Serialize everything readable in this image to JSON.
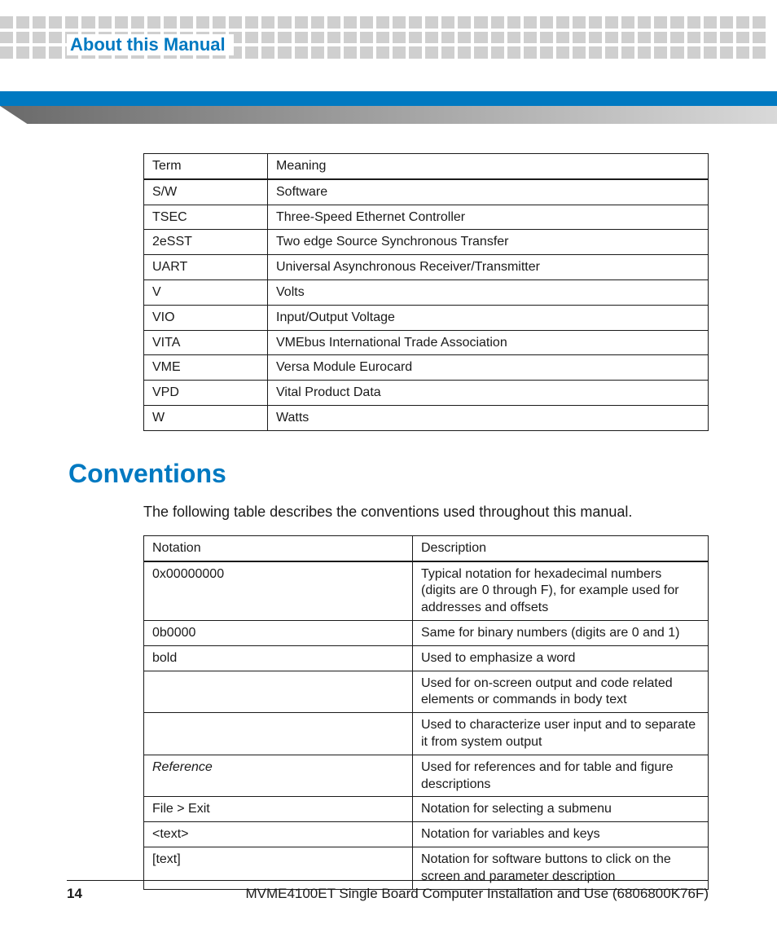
{
  "colors": {
    "accent": "#0079c1",
    "dot": "#cfcfcf",
    "wedge_start": "#6a6a6a",
    "wedge_end": "#d9d9d9",
    "text": "#1a1a1a",
    "border": "#1a1a1a"
  },
  "header": {
    "section_title": "About this Manual"
  },
  "term_table": {
    "columns": [
      "Term",
      "Meaning"
    ],
    "rows": [
      [
        "S/W",
        "Software"
      ],
      [
        "TSEC",
        "Three-Speed Ethernet Controller"
      ],
      [
        "2eSST",
        "Two edge Source Synchronous Transfer"
      ],
      [
        "UART",
        "Universal Asynchronous Receiver/Transmitter"
      ],
      [
        "V",
        "Volts"
      ],
      [
        "VIO",
        "Input/Output Voltage"
      ],
      [
        "VITA",
        "VMEbus International Trade Association"
      ],
      [
        "VME",
        "Versa Module Eurocard"
      ],
      [
        "VPD",
        "Vital Product Data"
      ],
      [
        "W",
        "Watts"
      ]
    ]
  },
  "conventions": {
    "heading": "Conventions",
    "intro": "The following table describes the conventions used throughout this manual.",
    "columns": [
      "Notation",
      "Description"
    ],
    "rows": [
      {
        "notation": "0x00000000",
        "style": "",
        "desc": "Typical notation for hexadecimal numbers (digits are 0 through F), for example used for addresses and offsets"
      },
      {
        "notation": "0b0000",
        "style": "",
        "desc": "Same for binary numbers (digits are 0 and 1)"
      },
      {
        "notation": "bold",
        "style": "",
        "desc": "Used to emphasize a word"
      },
      {
        "notation": "",
        "style": "",
        "desc": "Used for on-screen output and code related elements or commands in body text"
      },
      {
        "notation": "",
        "style": "",
        "desc": "Used to characterize user input and to separate it from system output"
      },
      {
        "notation": "Reference",
        "style": "italic",
        "desc": "Used for references and for table and figure descriptions"
      },
      {
        "notation": "File > Exit",
        "style": "",
        "desc": "Notation for selecting a submenu"
      },
      {
        "notation": "<text>",
        "style": "",
        "desc": "Notation for variables and keys"
      },
      {
        "notation": "[text]",
        "style": "",
        "desc": "Notation for software buttons to click on the screen and parameter description"
      }
    ]
  },
  "footer": {
    "page_number": "14",
    "doc_title": "MVME4100ET Single Board Computer Installation and Use (6806800K76F)"
  }
}
